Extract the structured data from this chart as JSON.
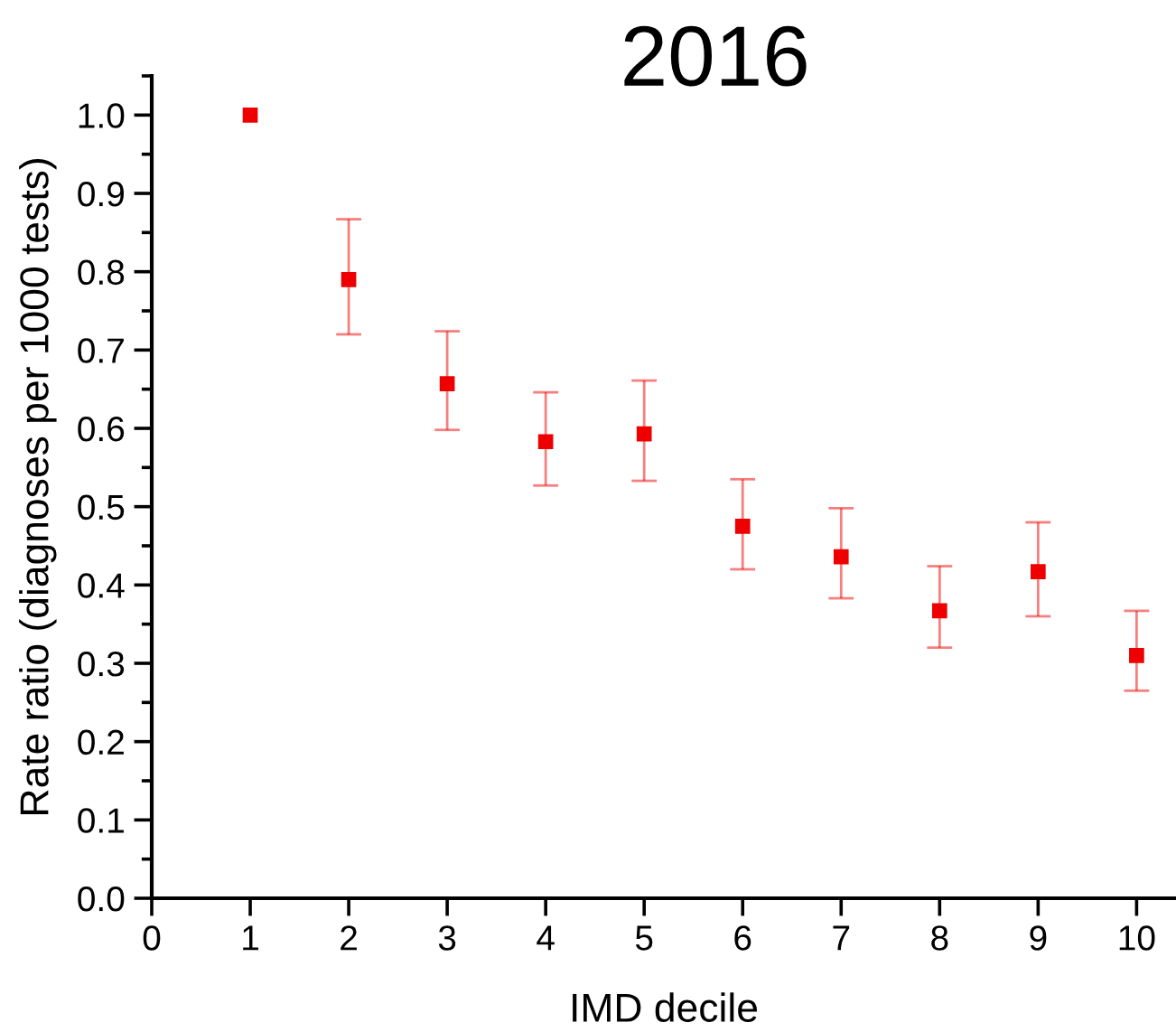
{
  "chart_data": {
    "type": "scatter",
    "title": "2016",
    "xlabel": "IMD decile",
    "ylabel": "Rate ratio (diagnoses per 1000 tests)",
    "x": [
      1,
      2,
      3,
      4,
      5,
      6,
      7,
      8,
      9,
      10
    ],
    "series": [
      {
        "color": "#ee0000",
        "values": [
          1.0,
          0.79,
          0.657,
          0.583,
          0.593,
          0.475,
          0.436,
          0.367,
          0.417,
          0.31
        ],
        "errors": [
          null,
          [
            0.72,
            0.867
          ],
          [
            0.598,
            0.724
          ],
          [
            0.527,
            0.646
          ],
          [
            0.533,
            0.661
          ],
          [
            0.42,
            0.535
          ],
          [
            0.383,
            0.498
          ],
          [
            0.32,
            0.424
          ],
          [
            0.36,
            0.48
          ],
          [
            0.265,
            0.367
          ]
        ]
      }
    ],
    "marker": "square",
    "xlim": [
      0,
      10.4
    ],
    "ylim": [
      0,
      1.05
    ],
    "xticks": [
      0,
      1,
      2,
      3,
      4,
      5,
      6,
      7,
      8,
      9,
      10
    ],
    "yticks": [
      {
        "value": 0,
        "label": "0.0"
      },
      0.1,
      0.2,
      0.3,
      0.4,
      0.5,
      0.6,
      0.7,
      0.8,
      0.9,
      {
        "value": 1,
        "label": "1.0"
      }
    ],
    "grid": false,
    "legend": false
  }
}
